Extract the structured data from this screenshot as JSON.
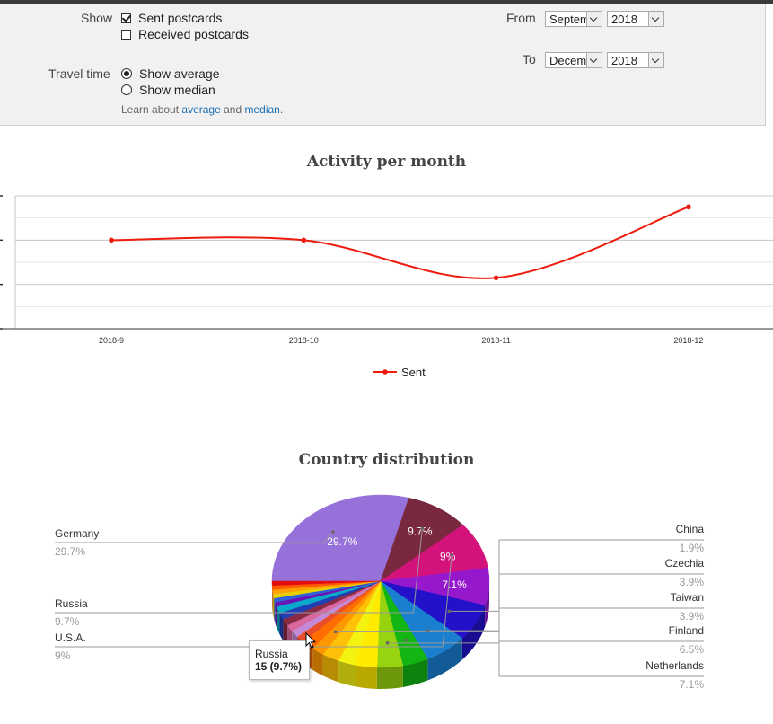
{
  "filters": {
    "show_label": "Show",
    "sent_label": "Sent postcards",
    "received_label": "Received postcards",
    "travel_label": "Travel time",
    "average_label": "Show average",
    "median_label": "Show median",
    "learn_prefix": "Learn about",
    "learn_average": "average",
    "learn_and": "and",
    "learn_median": "median",
    "learn_suffix": ".",
    "from_label": "From",
    "to_label": "To",
    "from_month": "September",
    "from_year": "2018",
    "to_month": "December",
    "to_year": "2018"
  },
  "activity": {
    "title": "Activity per month",
    "legend": "Sent"
  },
  "chart_data": [
    {
      "type": "line",
      "title": "Activity per month",
      "x": [
        "2018-9",
        "2018-10",
        "2018-11",
        "2018-12"
      ],
      "series": [
        {
          "name": "Sent",
          "values": [
            40,
            40,
            23,
            55
          ],
          "color": "#ee1c0e"
        }
      ],
      "ylim": [
        0,
        60
      ],
      "grid": true,
      "legend_position": "bottom"
    },
    {
      "type": "pie",
      "title": "Country distribution",
      "slices": [
        {
          "label": "Germany",
          "percent": 29.7,
          "color": "#9571d9"
        },
        {
          "label": "Russia",
          "percent": 9.7,
          "color": "#7a2840"
        },
        {
          "label": "U.S.A.",
          "percent": 9,
          "color": "#d4127b"
        },
        {
          "label": "",
          "percent": 7.1,
          "color": "#9618cc"
        },
        {
          "label": "Netherlands",
          "percent": 7.1,
          "color": "#2211c8"
        },
        {
          "label": "Finland",
          "percent": 6.5,
          "color": "#1b7fd0"
        },
        {
          "label": "Taiwan",
          "percent": 3.9,
          "color": "#12b512"
        },
        {
          "label": "Czechia",
          "percent": 3.9,
          "color": "#98d30f"
        },
        {
          "label": "",
          "percent": 3.3,
          "color": "#ffea00"
        },
        {
          "label": "",
          "percent": 2.6,
          "color": "#f4f210"
        },
        {
          "label": "",
          "percent": 2.6,
          "color": "#ffc107"
        },
        {
          "label": "China",
          "percent": 1.9,
          "color": "#ff9800"
        },
        {
          "label": "",
          "percent": 1.9,
          "color": "#ff6d00"
        },
        {
          "label": "",
          "percent": 1.3,
          "color": "#e94e2a"
        },
        {
          "label": "",
          "percent": 1.3,
          "color": "#c48ad6"
        },
        {
          "label": "",
          "percent": 1.3,
          "color": "#d9689e"
        },
        {
          "label": "",
          "percent": 1.3,
          "color": "#8a2b45"
        },
        {
          "label": "",
          "percent": 1.3,
          "color": "#1f3fb5"
        },
        {
          "label": "",
          "percent": 1.3,
          "color": "#0aa8c9"
        },
        {
          "label": "",
          "percent": 0.8,
          "color": "#6a14b5"
        },
        {
          "label": "",
          "percent": 0.8,
          "color": "#2f62d8"
        },
        {
          "label": "",
          "percent": 0.8,
          "color": "#e6d000"
        },
        {
          "label": "",
          "percent": 0.8,
          "color": "#ffa000"
        },
        {
          "label": "",
          "percent": 0.8,
          "color": "#ff5a00"
        },
        {
          "label": "",
          "percent": 0.8,
          "color": "#e10f0f"
        }
      ],
      "slice_texts": [
        "29.7%",
        "9.7%",
        "9%",
        "7.1%"
      ],
      "callouts": {
        "left": [
          {
            "label": "Germany",
            "value": "29.7%"
          },
          {
            "label": "Russia",
            "value": "9.7%"
          },
          {
            "label": "U.S.A.",
            "value": "9%"
          }
        ],
        "right": [
          {
            "label": "China",
            "value": "1.9%"
          },
          {
            "label": "Czechia",
            "value": "3.9%"
          },
          {
            "label": "Taiwan",
            "value": "3.9%"
          },
          {
            "label": "Finland",
            "value": "6.5%"
          },
          {
            "label": "Netherlands",
            "value": "7.1%"
          }
        ]
      },
      "tooltip": {
        "label": "Russia",
        "value": "15 (9.7%)"
      }
    }
  ]
}
